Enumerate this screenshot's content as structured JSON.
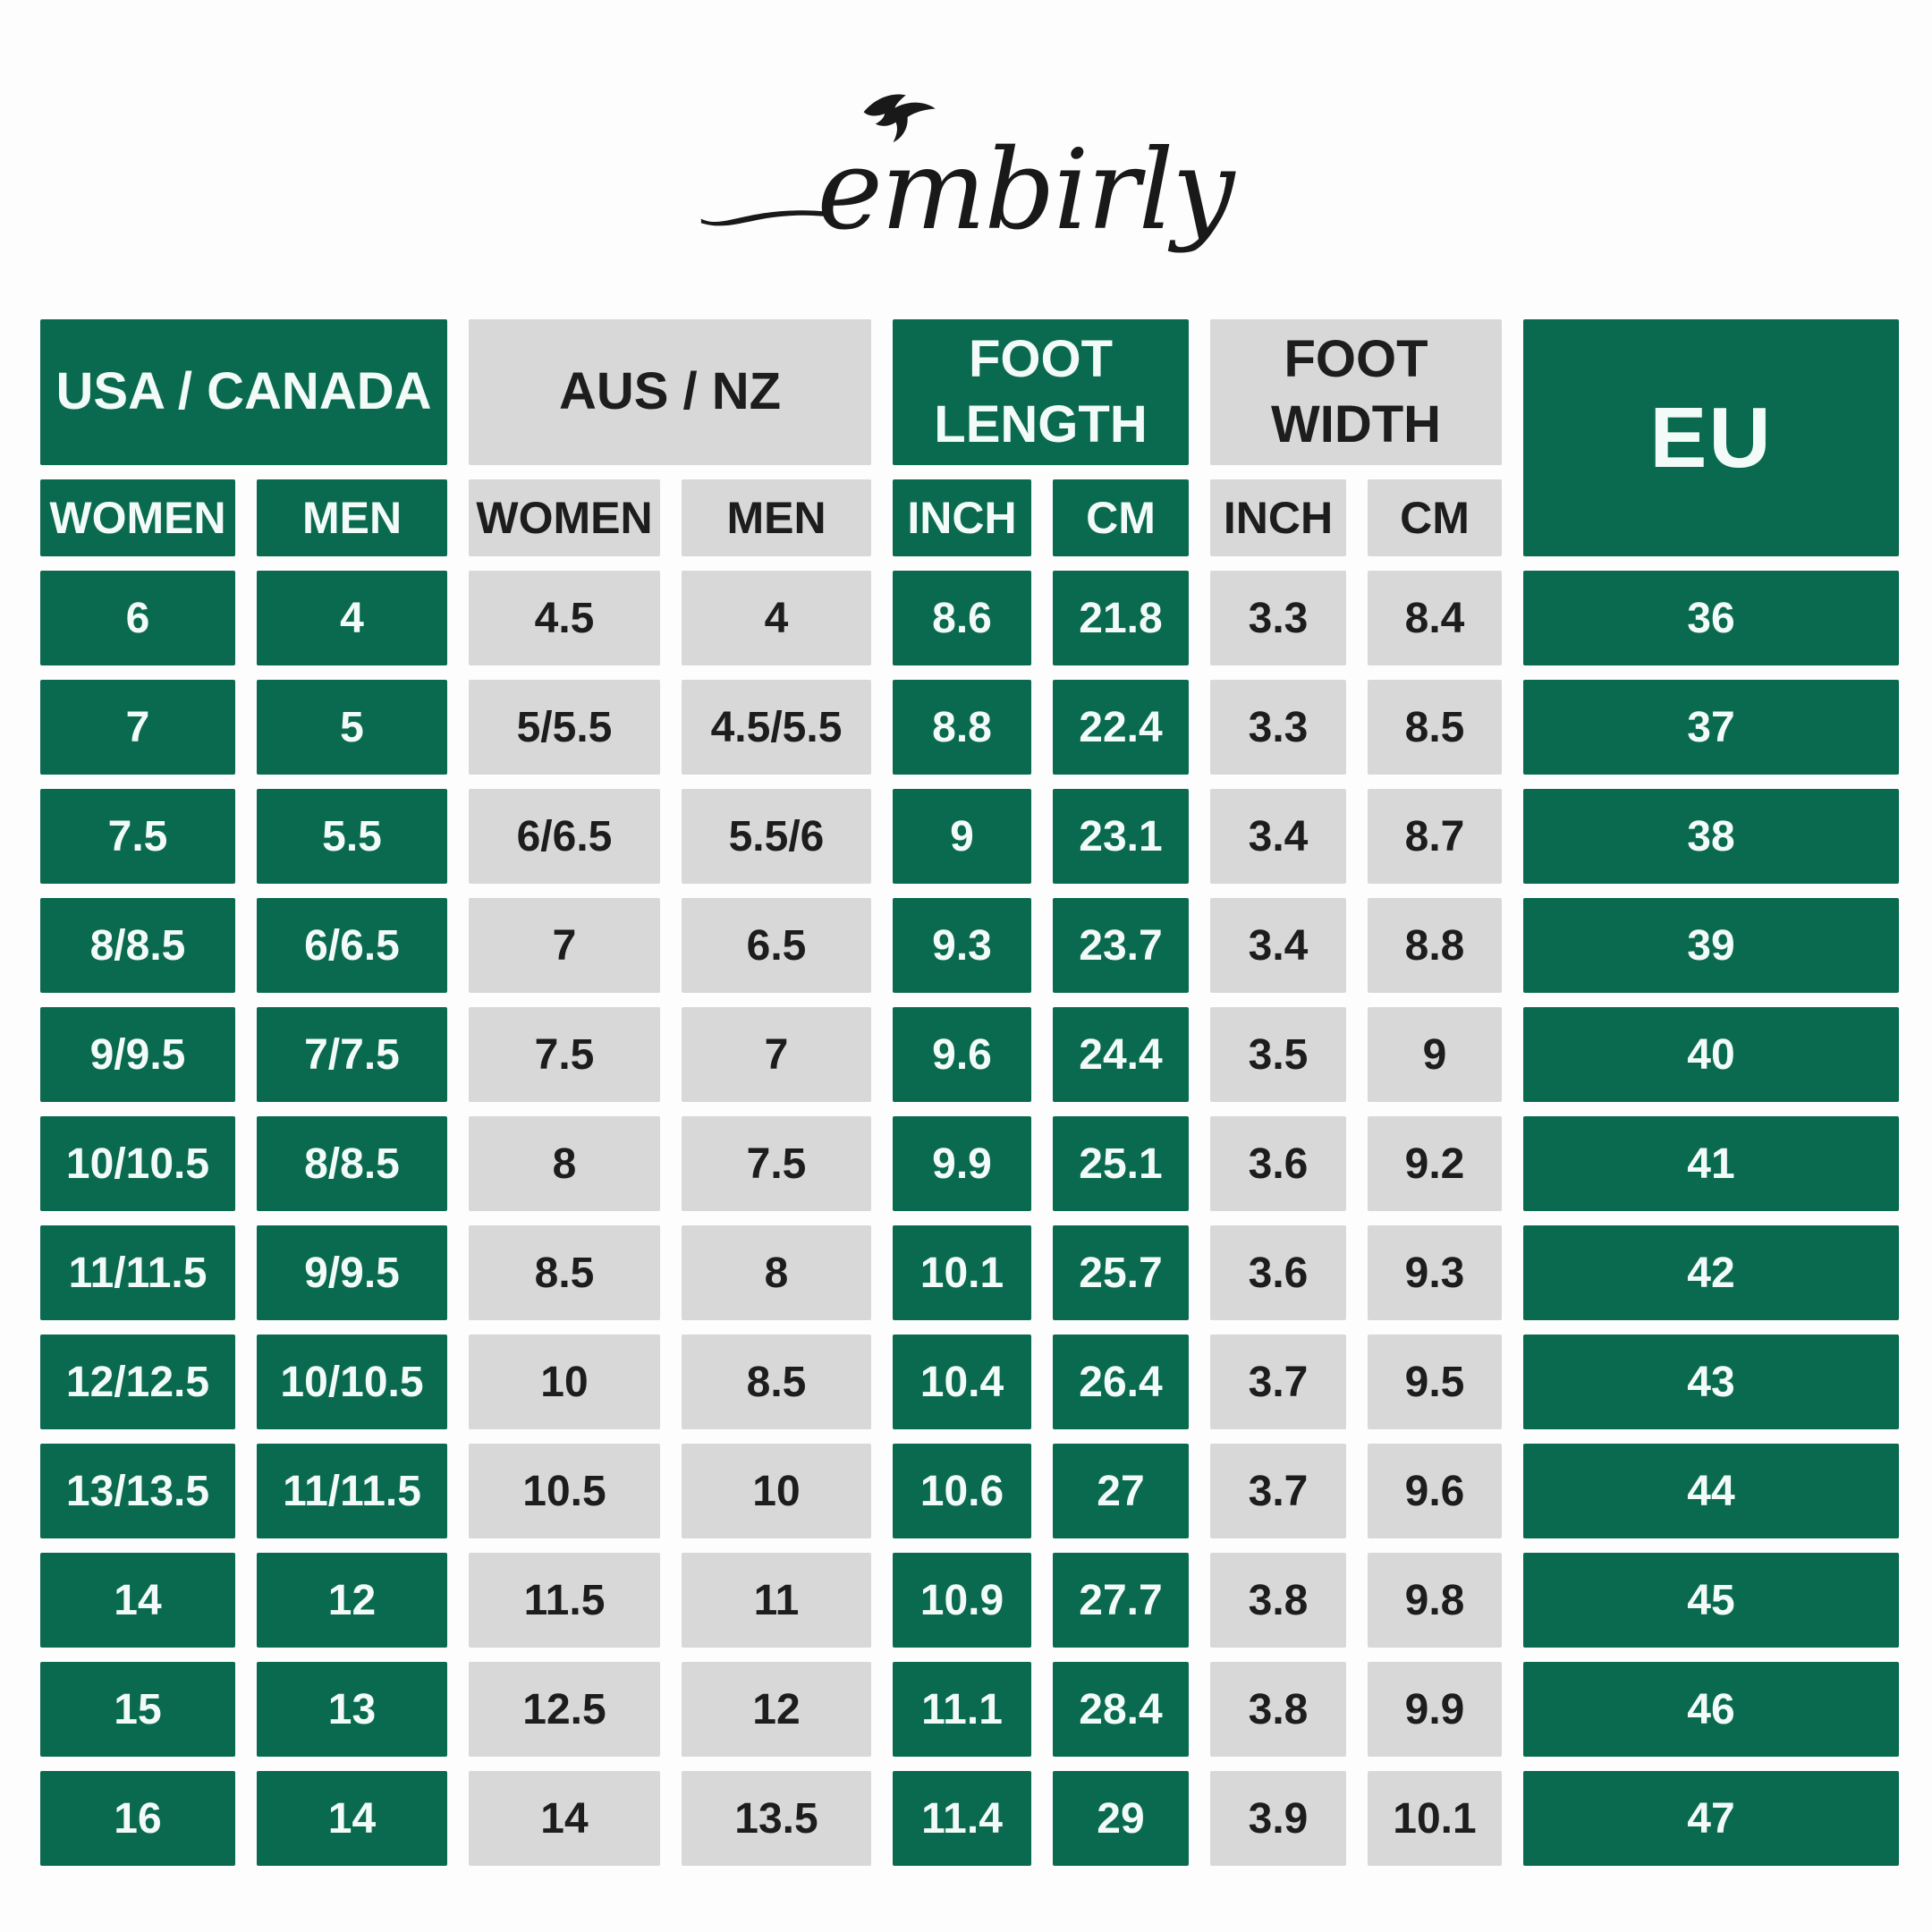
{
  "logo": {
    "brand": "embirly",
    "bird_icon": "swallow-icon",
    "swash_icon": "swash-flourish-icon"
  },
  "colors": {
    "green": "#0a6a50",
    "gray": "#d8d8d8",
    "text_on_green": "#f2fbf7",
    "text_on_gray": "#1d1d1d",
    "background": "#fdfdfd",
    "logo_text": "#191919"
  },
  "table": {
    "groups": [
      {
        "label": "USA / CANADA",
        "theme": "green"
      },
      {
        "label": "AUS / NZ",
        "theme": "gray"
      },
      {
        "label": "FOOT LENGTH",
        "theme": "green"
      },
      {
        "label": "FOOT WIDTH",
        "theme": "gray"
      },
      {
        "label": "EU",
        "theme": "green"
      }
    ],
    "sub_headers": [
      "WOMEN",
      "MEN",
      "WOMEN",
      "MEN",
      "INCH",
      "CM",
      "INCH",
      "CM"
    ],
    "column_themes": [
      "green",
      "green",
      "gray",
      "gray",
      "green",
      "green",
      "gray",
      "gray",
      "green"
    ],
    "rows": [
      [
        "6",
        "4",
        "4.5",
        "4",
        "8.6",
        "21.8",
        "3.3",
        "8.4",
        "36"
      ],
      [
        "7",
        "5",
        "5/5.5",
        "4.5/5.5",
        "8.8",
        "22.4",
        "3.3",
        "8.5",
        "37"
      ],
      [
        "7.5",
        "5.5",
        "6/6.5",
        "5.5/6",
        "9",
        "23.1",
        "3.4",
        "8.7",
        "38"
      ],
      [
        "8/8.5",
        "6/6.5",
        "7",
        "6.5",
        "9.3",
        "23.7",
        "3.4",
        "8.8",
        "39"
      ],
      [
        "9/9.5",
        "7/7.5",
        "7.5",
        "7",
        "9.6",
        "24.4",
        "3.5",
        "9",
        "40"
      ],
      [
        "10/10.5",
        "8/8.5",
        "8",
        "7.5",
        "9.9",
        "25.1",
        "3.6",
        "9.2",
        "41"
      ],
      [
        "11/11.5",
        "9/9.5",
        "8.5",
        "8",
        "10.1",
        "25.7",
        "3.6",
        "9.3",
        "42"
      ],
      [
        "12/12.5",
        "10/10.5",
        "10",
        "8.5",
        "10.4",
        "26.4",
        "3.7",
        "9.5",
        "43"
      ],
      [
        "13/13.5",
        "11/11.5",
        "10.5",
        "10",
        "10.6",
        "27",
        "3.7",
        "9.6",
        "44"
      ],
      [
        "14",
        "12",
        "11.5",
        "11",
        "10.9",
        "27.7",
        "3.8",
        "9.8",
        "45"
      ],
      [
        "15",
        "13",
        "12.5",
        "12",
        "11.1",
        "28.4",
        "3.8",
        "9.9",
        "46"
      ],
      [
        "16",
        "14",
        "14",
        "13.5",
        "11.4",
        "29",
        "3.9",
        "10.1",
        "47"
      ]
    ]
  },
  "chart_data": {
    "type": "table",
    "title": "embirly shoe size conversion chart",
    "columns": [
      "USA/CANADA WOMEN",
      "USA/CANADA MEN",
      "AUS/NZ WOMEN",
      "AUS/NZ MEN",
      "FOOT LENGTH INCH",
      "FOOT LENGTH CM",
      "FOOT WIDTH INCH",
      "FOOT WIDTH CM",
      "EU"
    ],
    "rows": [
      [
        "6",
        "4",
        "4.5",
        "4",
        "8.6",
        "21.8",
        "3.3",
        "8.4",
        "36"
      ],
      [
        "7",
        "5",
        "5/5.5",
        "4.5/5.5",
        "8.8",
        "22.4",
        "3.3",
        "8.5",
        "37"
      ],
      [
        "7.5",
        "5.5",
        "6/6.5",
        "5.5/6",
        "9",
        "23.1",
        "3.4",
        "8.7",
        "38"
      ],
      [
        "8/8.5",
        "6/6.5",
        "7",
        "6.5",
        "9.3",
        "23.7",
        "3.4",
        "8.8",
        "39"
      ],
      [
        "9/9.5",
        "7/7.5",
        "7.5",
        "7",
        "9.6",
        "24.4",
        "3.5",
        "9",
        "40"
      ],
      [
        "10/10.5",
        "8/8.5",
        "8",
        "7.5",
        "9.9",
        "25.1",
        "3.6",
        "9.2",
        "41"
      ],
      [
        "11/11.5",
        "9/9.5",
        "8.5",
        "8",
        "10.1",
        "25.7",
        "3.6",
        "9.3",
        "42"
      ],
      [
        "12/12.5",
        "10/10.5",
        "10",
        "8.5",
        "10.4",
        "26.4",
        "3.7",
        "9.5",
        "43"
      ],
      [
        "13/13.5",
        "11/11.5",
        "10.5",
        "10",
        "10.6",
        "27",
        "3.7",
        "9.6",
        "44"
      ],
      [
        "14",
        "12",
        "11.5",
        "11",
        "10.9",
        "27.7",
        "3.8",
        "9.8",
        "45"
      ],
      [
        "15",
        "13",
        "12.5",
        "12",
        "11.1",
        "28.4",
        "3.8",
        "9.9",
        "46"
      ],
      [
        "16",
        "14",
        "14",
        "13.5",
        "11.4",
        "29",
        "3.9",
        "10.1",
        "47"
      ]
    ]
  }
}
